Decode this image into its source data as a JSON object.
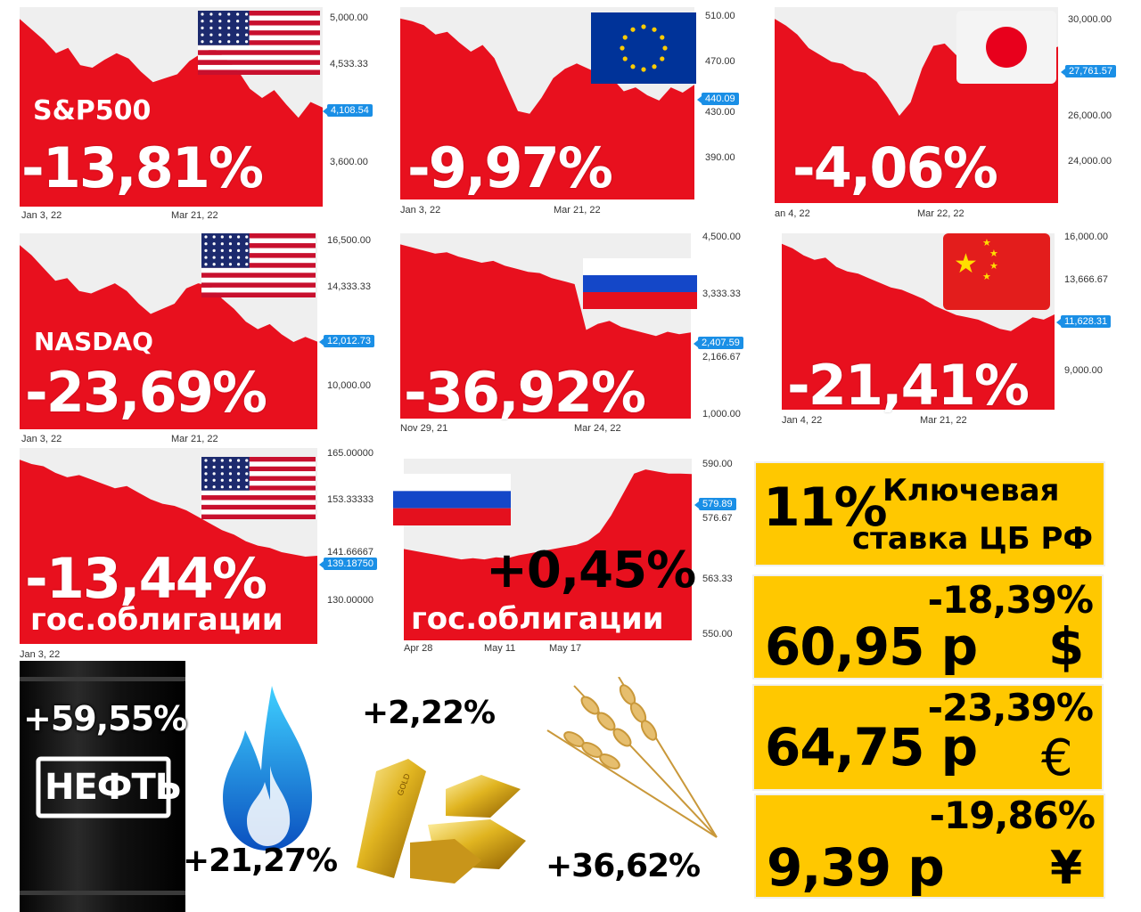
{
  "chart_data": [
    {
      "type": "area",
      "name": "sp500",
      "label": "S&P500",
      "change": "-13,81%",
      "country": "usa",
      "yticks": [
        "5,000.00",
        "4,533.33",
        "3,600.00"
      ],
      "last": "4,108.54",
      "xticks": [
        "Jan 3, 22",
        "Mar 21, 22"
      ],
      "values": [
        4780,
        4700,
        4620,
        4520,
        4560,
        4430,
        4410,
        4470,
        4520,
        4480,
        4380,
        4300,
        4330,
        4360,
        4460,
        4520,
        4560,
        4480,
        4390,
        4250,
        4180,
        4240,
        4130,
        4030,
        4150,
        4108
      ]
    },
    {
      "type": "area",
      "name": "euro",
      "label": "",
      "change": "-9,97%",
      "country": "eu",
      "yticks": [
        "510.00",
        "470.00",
        "430.00",
        "390.00"
      ],
      "last": "440.09",
      "xticks": [
        "Jan 3, 22",
        "Mar 21, 22"
      ],
      "values": [
        490,
        488,
        485,
        478,
        480,
        472,
        465,
        470,
        460,
        440,
        420,
        418,
        430,
        445,
        452,
        456,
        452,
        448,
        445,
        435,
        438,
        432,
        428,
        438,
        434,
        440
      ]
    },
    {
      "type": "area",
      "name": "nikkei",
      "label": "",
      "change": "-4,06%",
      "country": "japan",
      "yticks": [
        "30,000.00",
        "27,761.57",
        "26,000.00",
        "24,000.00"
      ],
      "last": "27,761.57",
      "xticks": [
        "an 4, 22",
        "Mar 22, 22"
      ],
      "values": [
        29000,
        28700,
        28300,
        27700,
        27400,
        27100,
        27000,
        26700,
        26600,
        26200,
        25500,
        24700,
        25300,
        26800,
        27800,
        27900,
        27400,
        27000,
        26700,
        26400,
        26900,
        26800,
        26500,
        27000,
        27600,
        27762
      ]
    },
    {
      "type": "area",
      "name": "nasdaq",
      "label": "NASDAQ",
      "change": "-23,69%",
      "country": "usa",
      "yticks": [
        "16,500.00",
        "14,333.33",
        "12,012.73",
        "10,000.00"
      ],
      "last": "12,012.73",
      "xticks": [
        "Jan 3, 22",
        "Mar 21, 22"
      ],
      "values": [
        15800,
        15400,
        14900,
        14400,
        14500,
        14000,
        13900,
        14100,
        14300,
        14000,
        13500,
        13100,
        13300,
        13500,
        14100,
        14300,
        14200,
        13700,
        13300,
        12800,
        12500,
        12700,
        12300,
        12000,
        12200,
        12013
      ]
    },
    {
      "type": "area",
      "name": "moex",
      "label": "",
      "change": "-36,92%",
      "country": "russia",
      "yticks": [
        "4,500.00",
        "3,333.33",
        "2,166.67",
        "1,000.00"
      ],
      "last": "2,407.59",
      "xticks": [
        "Nov 29, 21",
        "Mar 24, 22"
      ],
      "values": [
        3850,
        3800,
        3750,
        3700,
        3720,
        3650,
        3600,
        3550,
        3580,
        3500,
        3450,
        3400,
        3380,
        3300,
        3250,
        3200,
        2450,
        2550,
        2600,
        2500,
        2450,
        2400,
        2350,
        2420,
        2380,
        2408
      ]
    },
    {
      "type": "area",
      "name": "china",
      "label": "",
      "change": "-21,41%",
      "country": "china",
      "yticks": [
        "16,000.00",
        "13,666.67",
        "11,628.31",
        "9,000.00"
      ],
      "last": "11,628.31",
      "xticks": [
        "Jan 4, 22",
        "Mar 21, 22"
      ],
      "values": [
        14700,
        14500,
        14200,
        14000,
        14100,
        13700,
        13500,
        13400,
        13200,
        13000,
        12800,
        12700,
        12500,
        12300,
        12000,
        11800,
        11600,
        11500,
        11400,
        11200,
        11000,
        10900,
        11200,
        11500,
        11400,
        11628
      ]
    },
    {
      "type": "area",
      "name": "us-bonds",
      "label": "гос.облигации",
      "change": "-13,44%",
      "country": "usa",
      "yticks": [
        "165.00000",
        "153.33333",
        "141.66667",
        "130.00000"
      ],
      "last": "139.18750",
      "xticks": [
        "Jan 3, 22"
      ],
      "values": [
        161,
        160,
        159.5,
        158,
        157,
        157.5,
        156.5,
        155.5,
        154.5,
        155,
        153.5,
        152,
        151,
        150.5,
        149.5,
        148,
        146.5,
        145,
        144,
        142.5,
        141.5,
        141,
        140,
        139.5,
        139,
        139.19
      ]
    },
    {
      "type": "area",
      "name": "ru-bonds",
      "label": "гос.облигации",
      "change": "+0,45%",
      "country": "russia",
      "yticks": [
        "590.00",
        "576.67",
        "563.33",
        "550.00"
      ],
      "last": "579.89",
      "xticks": [
        "Apr 28",
        "May 11",
        "May 17"
      ],
      "values": [
        562,
        561.5,
        561,
        560.5,
        560,
        559.5,
        559.8,
        559.5,
        560,
        559.8,
        560.5,
        561,
        561.5,
        562,
        562.5,
        563,
        564,
        566,
        570,
        575,
        580,
        581,
        580.5,
        580,
        580,
        579.89
      ]
    }
  ],
  "key_rate": {
    "value": "11%",
    "line1": "Ключевая",
    "line2": "ставка ЦБ РФ"
  },
  "currencies": [
    {
      "name": "usd",
      "change": "-18,39%",
      "rate": "60,95 р",
      "symbol": "$"
    },
    {
      "name": "eur",
      "change": "-23,39%",
      "rate": "64,75 р",
      "symbol": "€"
    },
    {
      "name": "cny",
      "change": "-19,86%",
      "rate": "9,39 р",
      "symbol": "¥"
    }
  ],
  "commodities": {
    "oil": {
      "change": "+59,55%",
      "label": "НЕФТЬ"
    },
    "gas": {
      "change": "+21,27%"
    },
    "gold": {
      "change": "+2,22%",
      "bar_text": "GOLD"
    },
    "wheat": {
      "change": "+36,62%"
    }
  },
  "colors": {
    "area": "#e8101e",
    "accent": "#ffc800",
    "badge": "#1a8fe6"
  }
}
